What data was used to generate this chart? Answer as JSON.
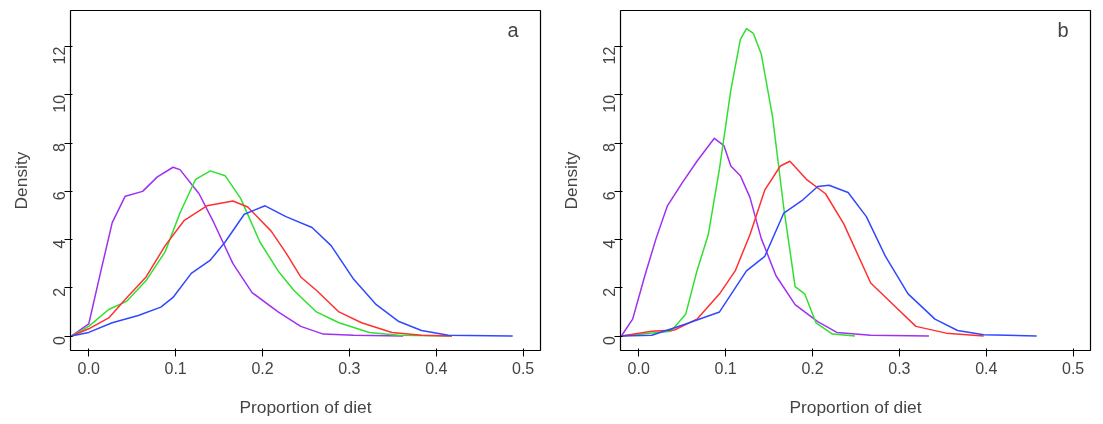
{
  "chart_data": [
    {
      "type": "line",
      "xlabel": "Proportion of diet",
      "ylabel": "Density",
      "annotations": [
        "a"
      ],
      "xlim": [
        -0.021,
        0.52
      ],
      "ylim": [
        -0.6,
        13.5
      ],
      "xticks": [
        {
          "value": 0,
          "label": "0.0"
        },
        0.1,
        0.2,
        0.3,
        0.4,
        0.5
      ],
      "yticks": [
        0,
        2,
        4,
        6,
        8,
        10,
        12
      ],
      "grid": false,
      "series": [
        {
          "color": "#a030f0",
          "x": [
            -0.02,
            0.0,
            0.014,
            0.027,
            0.042,
            0.062,
            0.079,
            0.097,
            0.105,
            0.127,
            0.144,
            0.166,
            0.188,
            0.218,
            0.244,
            0.27,
            0.305,
            0.362
          ],
          "values": [
            0,
            0.5,
            2.7,
            4.7,
            5.8,
            6.0,
            6.6,
            7.0,
            6.9,
            5.9,
            4.7,
            3.0,
            1.8,
            1.0,
            0.4,
            0.08,
            0.03,
            0
          ]
        },
        {
          "color": "#30e030",
          "x": [
            -0.02,
            0.0,
            0.023,
            0.044,
            0.066,
            0.088,
            0.105,
            0.123,
            0.14,
            0.157,
            0.175,
            0.197,
            0.218,
            0.236,
            0.262,
            0.288,
            0.323,
            0.357,
            0.418
          ],
          "values": [
            0,
            0.4,
            1.1,
            1.45,
            2.3,
            3.5,
            5.1,
            6.5,
            6.85,
            6.65,
            5.7,
            3.9,
            2.7,
            1.9,
            1.0,
            0.55,
            0.15,
            0.03,
            0
          ]
        },
        {
          "color": "#ff3030",
          "x": [
            -0.02,
            0.0,
            0.023,
            0.044,
            0.066,
            0.088,
            0.11,
            0.136,
            0.166,
            0.183,
            0.21,
            0.227,
            0.244,
            0.262,
            0.288,
            0.314,
            0.349,
            0.383,
            0.418
          ],
          "values": [
            0,
            0.3,
            0.75,
            1.6,
            2.45,
            3.75,
            4.8,
            5.4,
            5.6,
            5.35,
            4.35,
            3.45,
            2.45,
            1.9,
            1.0,
            0.55,
            0.15,
            0.03,
            0
          ]
        },
        {
          "color": "#3048ff",
          "x": [
            -0.02,
            0.0,
            0.027,
            0.057,
            0.083,
            0.097,
            0.118,
            0.14,
            0.157,
            0.179,
            0.203,
            0.227,
            0.257,
            0.279,
            0.305,
            0.331,
            0.357,
            0.383,
            0.414,
            0.488
          ],
          "values": [
            0,
            0.15,
            0.55,
            0.85,
            1.2,
            1.6,
            2.6,
            3.15,
            3.9,
            5.05,
            5.4,
            4.95,
            4.5,
            3.75,
            2.35,
            1.3,
            0.6,
            0.23,
            0.03,
            0
          ]
        }
      ]
    },
    {
      "type": "line",
      "xlabel": "Proportion of diet",
      "ylabel": "Density",
      "annotations": [
        "b"
      ],
      "xlim": [
        -0.021,
        0.52
      ],
      "ylim": [
        -0.6,
        13.5
      ],
      "xticks": [
        {
          "value": 0,
          "label": "0.0"
        },
        0.1,
        0.2,
        0.3,
        0.4,
        0.5
      ],
      "yticks": [
        0,
        2,
        4,
        6,
        8,
        10,
        12
      ],
      "grid": false,
      "series": [
        {
          "color": "#a030f0",
          "x": [
            -0.02,
            -0.007,
            0.007,
            0.02,
            0.033,
            0.05,
            0.067,
            0.087,
            0.098,
            0.106,
            0.117,
            0.128,
            0.141,
            0.158,
            0.18,
            0.206,
            0.228,
            0.267,
            0.334
          ],
          "values": [
            0,
            0.7,
            2.5,
            4.05,
            5.4,
            6.35,
            7.25,
            8.2,
            7.9,
            7.05,
            6.65,
            5.75,
            4.05,
            2.5,
            1.3,
            0.6,
            0.15,
            0.03,
            0
          ]
        },
        {
          "color": "#30e030",
          "x": [
            -0.02,
            0.037,
            0.054,
            0.067,
            0.08,
            0.093,
            0.106,
            0.117,
            0.124,
            0.132,
            0.141,
            0.154,
            0.167,
            0.18,
            0.191,
            0.204,
            0.223,
            0.249
          ],
          "values": [
            0,
            0.2,
            0.9,
            2.7,
            4.2,
            6.95,
            10.2,
            12.3,
            12.75,
            12.55,
            11.7,
            9.1,
            5.3,
            2.05,
            1.75,
            0.55,
            0.08,
            0
          ]
        },
        {
          "color": "#ff3030",
          "x": [
            -0.02,
            0.015,
            0.041,
            0.067,
            0.093,
            0.111,
            0.128,
            0.145,
            0.163,
            0.174,
            0.193,
            0.215,
            0.236,
            0.267,
            0.293,
            0.319,
            0.354,
            0.397
          ],
          "values": [
            0,
            0.2,
            0.25,
            0.7,
            1.75,
            2.7,
            4.2,
            6.05,
            7.05,
            7.25,
            6.5,
            5.9,
            4.65,
            2.2,
            1.3,
            0.4,
            0.12,
            0
          ]
        },
        {
          "color": "#3048ff",
          "x": [
            -0.02,
            0.015,
            0.05,
            0.093,
            0.124,
            0.145,
            0.167,
            0.189,
            0.206,
            0.219,
            0.241,
            0.262,
            0.284,
            0.31,
            0.341,
            0.367,
            0.397,
            0.458
          ],
          "values": [
            0,
            0.03,
            0.45,
            1.0,
            2.7,
            3.3,
            5.1,
            5.65,
            6.2,
            6.25,
            5.95,
            4.95,
            3.3,
            1.75,
            0.7,
            0.23,
            0.05,
            0
          ]
        }
      ]
    }
  ]
}
